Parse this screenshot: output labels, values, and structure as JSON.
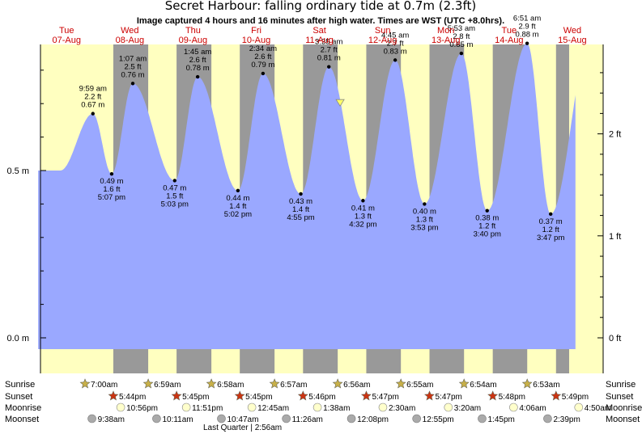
{
  "chart_data": {
    "type": "area",
    "title": "Secret Harbour: falling  ordinary tide at 0.7m (2.3ft)",
    "subtitle": "Image captured 4 hours and 16 minutes after high water. Times are WST (UTC +8.0hrs).",
    "y_ticks_left": [
      {
        "value": 0.5,
        "label": "0.5 m"
      },
      {
        "value": 0.0,
        "label": "0.0 m"
      }
    ],
    "y_ticks_right": [
      {
        "value": 0.6096,
        "label": "2 ft"
      },
      {
        "value": 0.3048,
        "label": "1 ft"
      },
      {
        "value": 0.0,
        "label": "0 ft"
      }
    ],
    "ylim": [
      -0.04,
      0.86
    ],
    "days": [
      {
        "dow": "Tue",
        "date": "07-Aug",
        "color": "#cc0000"
      },
      {
        "dow": "Wed",
        "date": "08-Aug",
        "color": "#cc0000"
      },
      {
        "dow": "Thu",
        "date": "09-Aug",
        "color": "#cc0000"
      },
      {
        "dow": "Fri",
        "date": "10-Aug",
        "color": "#cc0000"
      },
      {
        "dow": "Sat",
        "date": "11-Aug",
        "color": "#cc0000"
      },
      {
        "dow": "Sun",
        "date": "12-Aug",
        "color": "#cc0000"
      },
      {
        "dow": "Mon",
        "date": "13-Aug",
        "color": "#cc0000"
      },
      {
        "dow": "Tue",
        "date": "14-Aug",
        "color": "#cc0000"
      },
      {
        "dow": "Wed",
        "date": "15-Aug",
        "color": "#cc0000"
      }
    ],
    "extremes": [
      {
        "kind": "high",
        "time": "9:59 am",
        "ft": "2.2 ft",
        "m": "0.67 m",
        "height": 0.67,
        "t": 0.416
      },
      {
        "kind": "low",
        "time": "5:07 pm",
        "ft": "1.6 ft",
        "m": "0.49 m",
        "height": 0.49,
        "t": 0.713
      },
      {
        "kind": "high",
        "time": "1:07 am",
        "ft": "2.5 ft",
        "m": "0.76 m",
        "height": 0.76,
        "t": 1.047
      },
      {
        "kind": "low",
        "time": "5:03 pm",
        "ft": "1.5 ft",
        "m": "0.47 m",
        "height": 0.47,
        "t": 1.71
      },
      {
        "kind": "high",
        "time": "1:45 am",
        "ft": "2.6 ft",
        "m": "0.78 m",
        "height": 0.78,
        "t": 2.073
      },
      {
        "kind": "low",
        "time": "5:02 pm",
        "ft": "1.4 ft",
        "m": "0.44 m",
        "height": 0.44,
        "t": 2.71
      },
      {
        "kind": "high",
        "time": "2:34 am",
        "ft": "2.6 ft",
        "m": "0.79 m",
        "height": 0.79,
        "t": 3.107
      },
      {
        "kind": "low",
        "time": "4:55 pm",
        "ft": "1.4 ft",
        "m": "0.43 m",
        "height": 0.43,
        "t": 3.705
      },
      {
        "kind": "high",
        "time": "3:35 am",
        "ft": "2.7 ft",
        "m": "0.81 m",
        "height": 0.81,
        "t": 4.149
      },
      {
        "kind": "low",
        "time": "4:32 pm",
        "ft": "1.3 ft",
        "m": "0.41 m",
        "height": 0.41,
        "t": 4.689
      },
      {
        "kind": "high",
        "time": "4:45 am",
        "ft": "2.7 ft",
        "m": "0.83 m",
        "height": 0.83,
        "t": 5.198
      },
      {
        "kind": "low",
        "time": "3:53 pm",
        "ft": "1.3 ft",
        "m": "0.40 m",
        "height": 0.4,
        "t": 5.662
      },
      {
        "kind": "high",
        "time": "5:53 am",
        "ft": "2.8 ft",
        "m": "0.85 m",
        "height": 0.85,
        "t": 6.245
      },
      {
        "kind": "low",
        "time": "3:40 pm",
        "ft": "1.2 ft",
        "m": "0.38 m",
        "height": 0.38,
        "t": 6.653
      },
      {
        "kind": "high",
        "time": "6:51 am",
        "ft": "2.9 ft",
        "m": "0.88 m",
        "height": 0.88,
        "t": 7.285
      },
      {
        "kind": "low",
        "time": "3:47 pm",
        "ft": "1.2 ft",
        "m": "0.37 m",
        "height": 0.37,
        "t": 7.658
      }
    ],
    "current_level": 0.7,
    "legend_labels": {
      "sunrise": "Sunrise",
      "sunset": "Sunset",
      "moonrise": "Moonrise",
      "moonset": "Moonset"
    },
    "sunrise": [
      "7:00am",
      "6:59am",
      "6:58am",
      "6:57am",
      "6:56am",
      "6:55am",
      "6:54am",
      "6:53am"
    ],
    "sunset": [
      "5:44pm",
      "5:45pm",
      "5:45pm",
      "5:46pm",
      "5:47pm",
      "5:47pm",
      "5:48pm",
      "5:49pm"
    ],
    "moonrise": [
      "10:56pm",
      "11:51pm",
      "12:45am",
      "1:38am",
      "2:30am",
      "3:20am",
      "4:06am",
      "4:50am"
    ],
    "moonset": [
      "9:38am",
      "10:11am",
      "10:47am",
      "11:26am",
      "12:08pm",
      "12:55pm",
      "1:45pm",
      "2:39pm"
    ],
    "moon_phase": "Last Quarter | 2:56am",
    "colors": {
      "water": "#9aa8ff",
      "day_bg": "#ffffc0",
      "night_bg": "#999999",
      "high_low_dot": "#000000",
      "day_label": "#cc0000",
      "sunrise_star": "#c8b048",
      "sunset_star": "#cc3311",
      "moonrise_disc": "#ffffcc",
      "moonset_disc": "#aaaaaa",
      "now_marker": "#ffff66"
    }
  }
}
